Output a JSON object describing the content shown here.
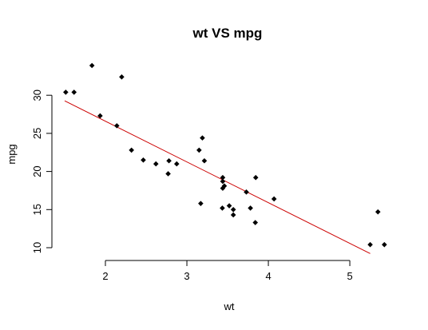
{
  "chart_data": {
    "type": "scatter",
    "title": "wt VS mpg",
    "xlabel": "wt",
    "ylabel": "mpg",
    "xlim": [
      1.5,
      5.45
    ],
    "ylim": [
      10.0,
      33.9
    ],
    "xticks": [
      "2",
      "3",
      "4",
      "5"
    ],
    "yticks": [
      "10",
      "15",
      "20",
      "25",
      "30"
    ],
    "point_color": "#000000",
    "regression_color": "#CC0000",
    "points": [
      {
        "x": 2.62,
        "y": 21.0
      },
      {
        "x": 2.875,
        "y": 21.0
      },
      {
        "x": 2.32,
        "y": 22.8
      },
      {
        "x": 3.215,
        "y": 21.4
      },
      {
        "x": 3.44,
        "y": 18.7
      },
      {
        "x": 3.46,
        "y": 18.1
      },
      {
        "x": 3.57,
        "y": 14.3
      },
      {
        "x": 3.19,
        "y": 24.4
      },
      {
        "x": 3.15,
        "y": 22.8
      },
      {
        "x": 3.44,
        "y": 19.2
      },
      {
        "x": 3.44,
        "y": 17.8
      },
      {
        "x": 4.07,
        "y": 16.4
      },
      {
        "x": 3.73,
        "y": 17.3
      },
      {
        "x": 3.78,
        "y": 15.2
      },
      {
        "x": 5.25,
        "y": 10.4
      },
      {
        "x": 5.424,
        "y": 10.4
      },
      {
        "x": 5.345,
        "y": 14.7
      },
      {
        "x": 2.2,
        "y": 32.4
      },
      {
        "x": 1.615,
        "y": 30.4
      },
      {
        "x": 1.835,
        "y": 33.9
      },
      {
        "x": 2.465,
        "y": 21.5
      },
      {
        "x": 3.52,
        "y": 15.5
      },
      {
        "x": 3.435,
        "y": 15.2
      },
      {
        "x": 3.84,
        "y": 13.3
      },
      {
        "x": 3.845,
        "y": 19.2
      },
      {
        "x": 1.935,
        "y": 27.3
      },
      {
        "x": 2.14,
        "y": 26.0
      },
      {
        "x": 1.513,
        "y": 30.4
      },
      {
        "x": 3.17,
        "y": 15.8
      },
      {
        "x": 2.77,
        "y": 19.7
      },
      {
        "x": 3.57,
        "y": 15.0
      },
      {
        "x": 2.78,
        "y": 21.4
      }
    ],
    "regression_line": {
      "intercept": 37.285,
      "slope": -5.344,
      "x_range": [
        1.5,
        5.25
      ]
    }
  }
}
